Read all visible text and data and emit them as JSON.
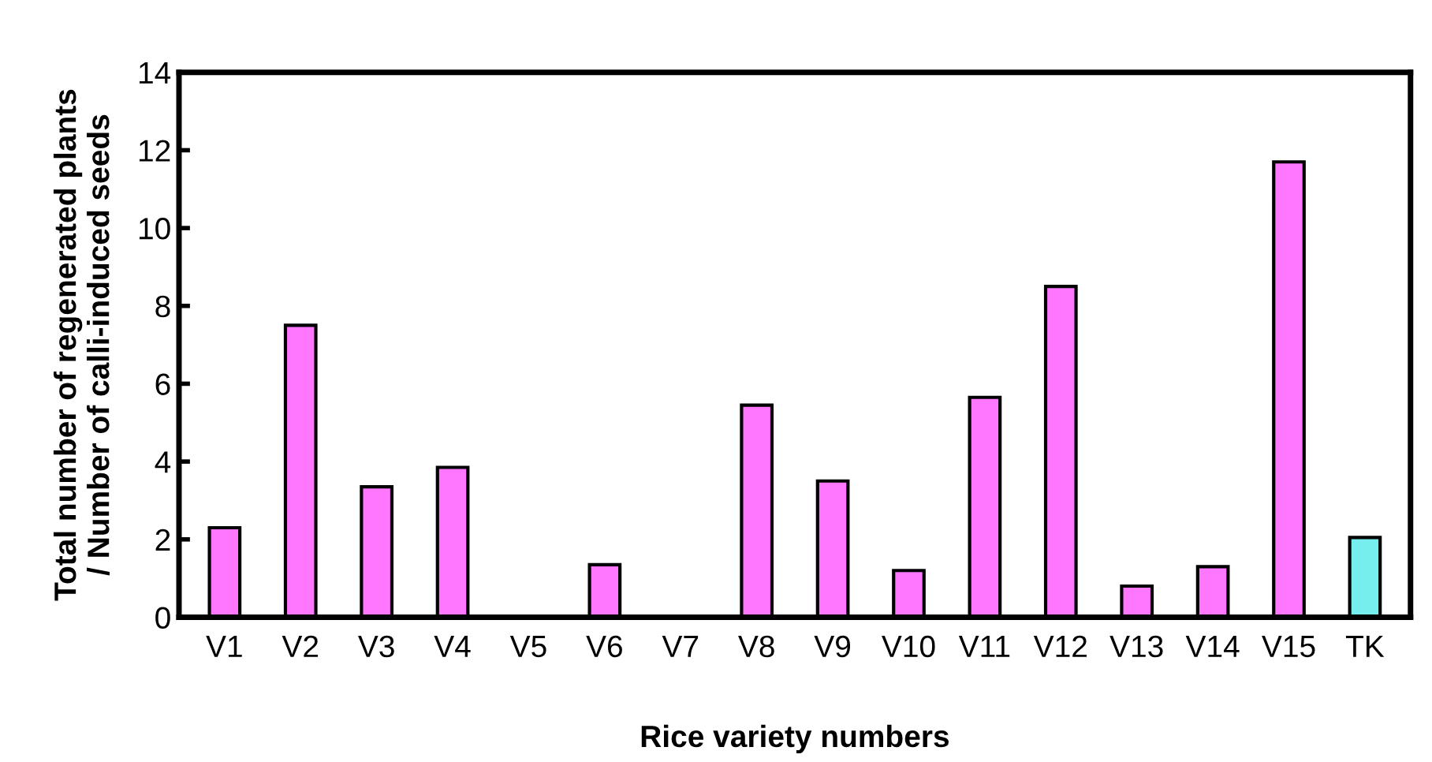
{
  "chart_data": {
    "type": "bar",
    "xlabel": "Rice variety numbers",
    "ylabel": "Total number of regenerated plants\n/ Number of calli-induced seeds",
    "categories": [
      "V1",
      "V2",
      "V3",
      "V4",
      "V5",
      "V6",
      "V7",
      "V8",
      "V9",
      "V10",
      "V11",
      "V12",
      "V13",
      "V14",
      "V15",
      "TK"
    ],
    "values": [
      2.3,
      7.5,
      3.35,
      3.85,
      null,
      1.35,
      null,
      5.45,
      3.5,
      1.2,
      5.65,
      8.5,
      0.8,
      1.3,
      11.7,
      2.05
    ],
    "colors": [
      "#ff77ff",
      "#ff77ff",
      "#ff77ff",
      "#ff77ff",
      "#ff77ff",
      "#ff77ff",
      "#ff77ff",
      "#ff77ff",
      "#ff77ff",
      "#ff77ff",
      "#ff77ff",
      "#ff77ff",
      "#ff77ff",
      "#ff77ff",
      "#ff77ff",
      "#77eeee"
    ],
    "ylim": [
      0,
      14
    ],
    "yticks": [
      0,
      2,
      4,
      6,
      8,
      10,
      12,
      14
    ],
    "grid": false,
    "legend": false
  }
}
